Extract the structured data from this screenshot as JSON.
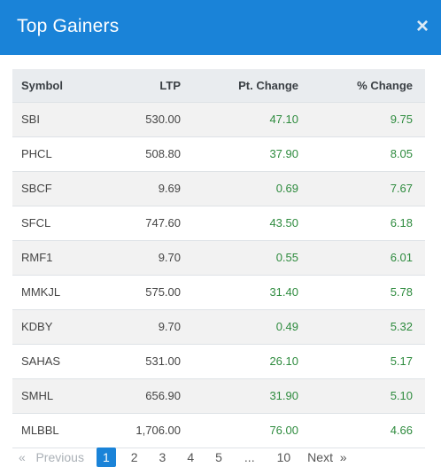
{
  "modal": {
    "title": "Top Gainers",
    "close_symbol": "×"
  },
  "table": {
    "headers": {
      "symbol": "Symbol",
      "ltp": "LTP",
      "pt_change": "Pt. Change",
      "pct_change": "% Change"
    },
    "rows": [
      {
        "symbol": "SBI",
        "ltp": "530.00",
        "pt_change": "47.10",
        "pct_change": "9.75"
      },
      {
        "symbol": "PHCL",
        "ltp": "508.80",
        "pt_change": "37.90",
        "pct_change": "8.05"
      },
      {
        "symbol": "SBCF",
        "ltp": "9.69",
        "pt_change": "0.69",
        "pct_change": "7.67"
      },
      {
        "symbol": "SFCL",
        "ltp": "747.60",
        "pt_change": "43.50",
        "pct_change": "6.18"
      },
      {
        "symbol": "RMF1",
        "ltp": "9.70",
        "pt_change": "0.55",
        "pct_change": "6.01"
      },
      {
        "symbol": "MMKJL",
        "ltp": "575.00",
        "pt_change": "31.40",
        "pct_change": "5.78"
      },
      {
        "symbol": "KDBY",
        "ltp": "9.70",
        "pt_change": "0.49",
        "pct_change": "5.32"
      },
      {
        "symbol": "SAHAS",
        "ltp": "531.00",
        "pt_change": "26.10",
        "pct_change": "5.17"
      },
      {
        "symbol": "SMHL",
        "ltp": "656.90",
        "pt_change": "31.90",
        "pct_change": "5.10"
      },
      {
        "symbol": "MLBBL",
        "ltp": "1,706.00",
        "pt_change": "76.00",
        "pct_change": "4.66"
      }
    ]
  },
  "pagination": {
    "prev_symbol": "«",
    "prev_label": "Previous",
    "pages": [
      "1",
      "2",
      "3",
      "4",
      "5",
      "...",
      "10"
    ],
    "active_page": "1",
    "next_label": "Next",
    "next_symbol": "»"
  },
  "colors": {
    "header_bg": "#1a83d8",
    "positive": "#2e8b3e"
  }
}
